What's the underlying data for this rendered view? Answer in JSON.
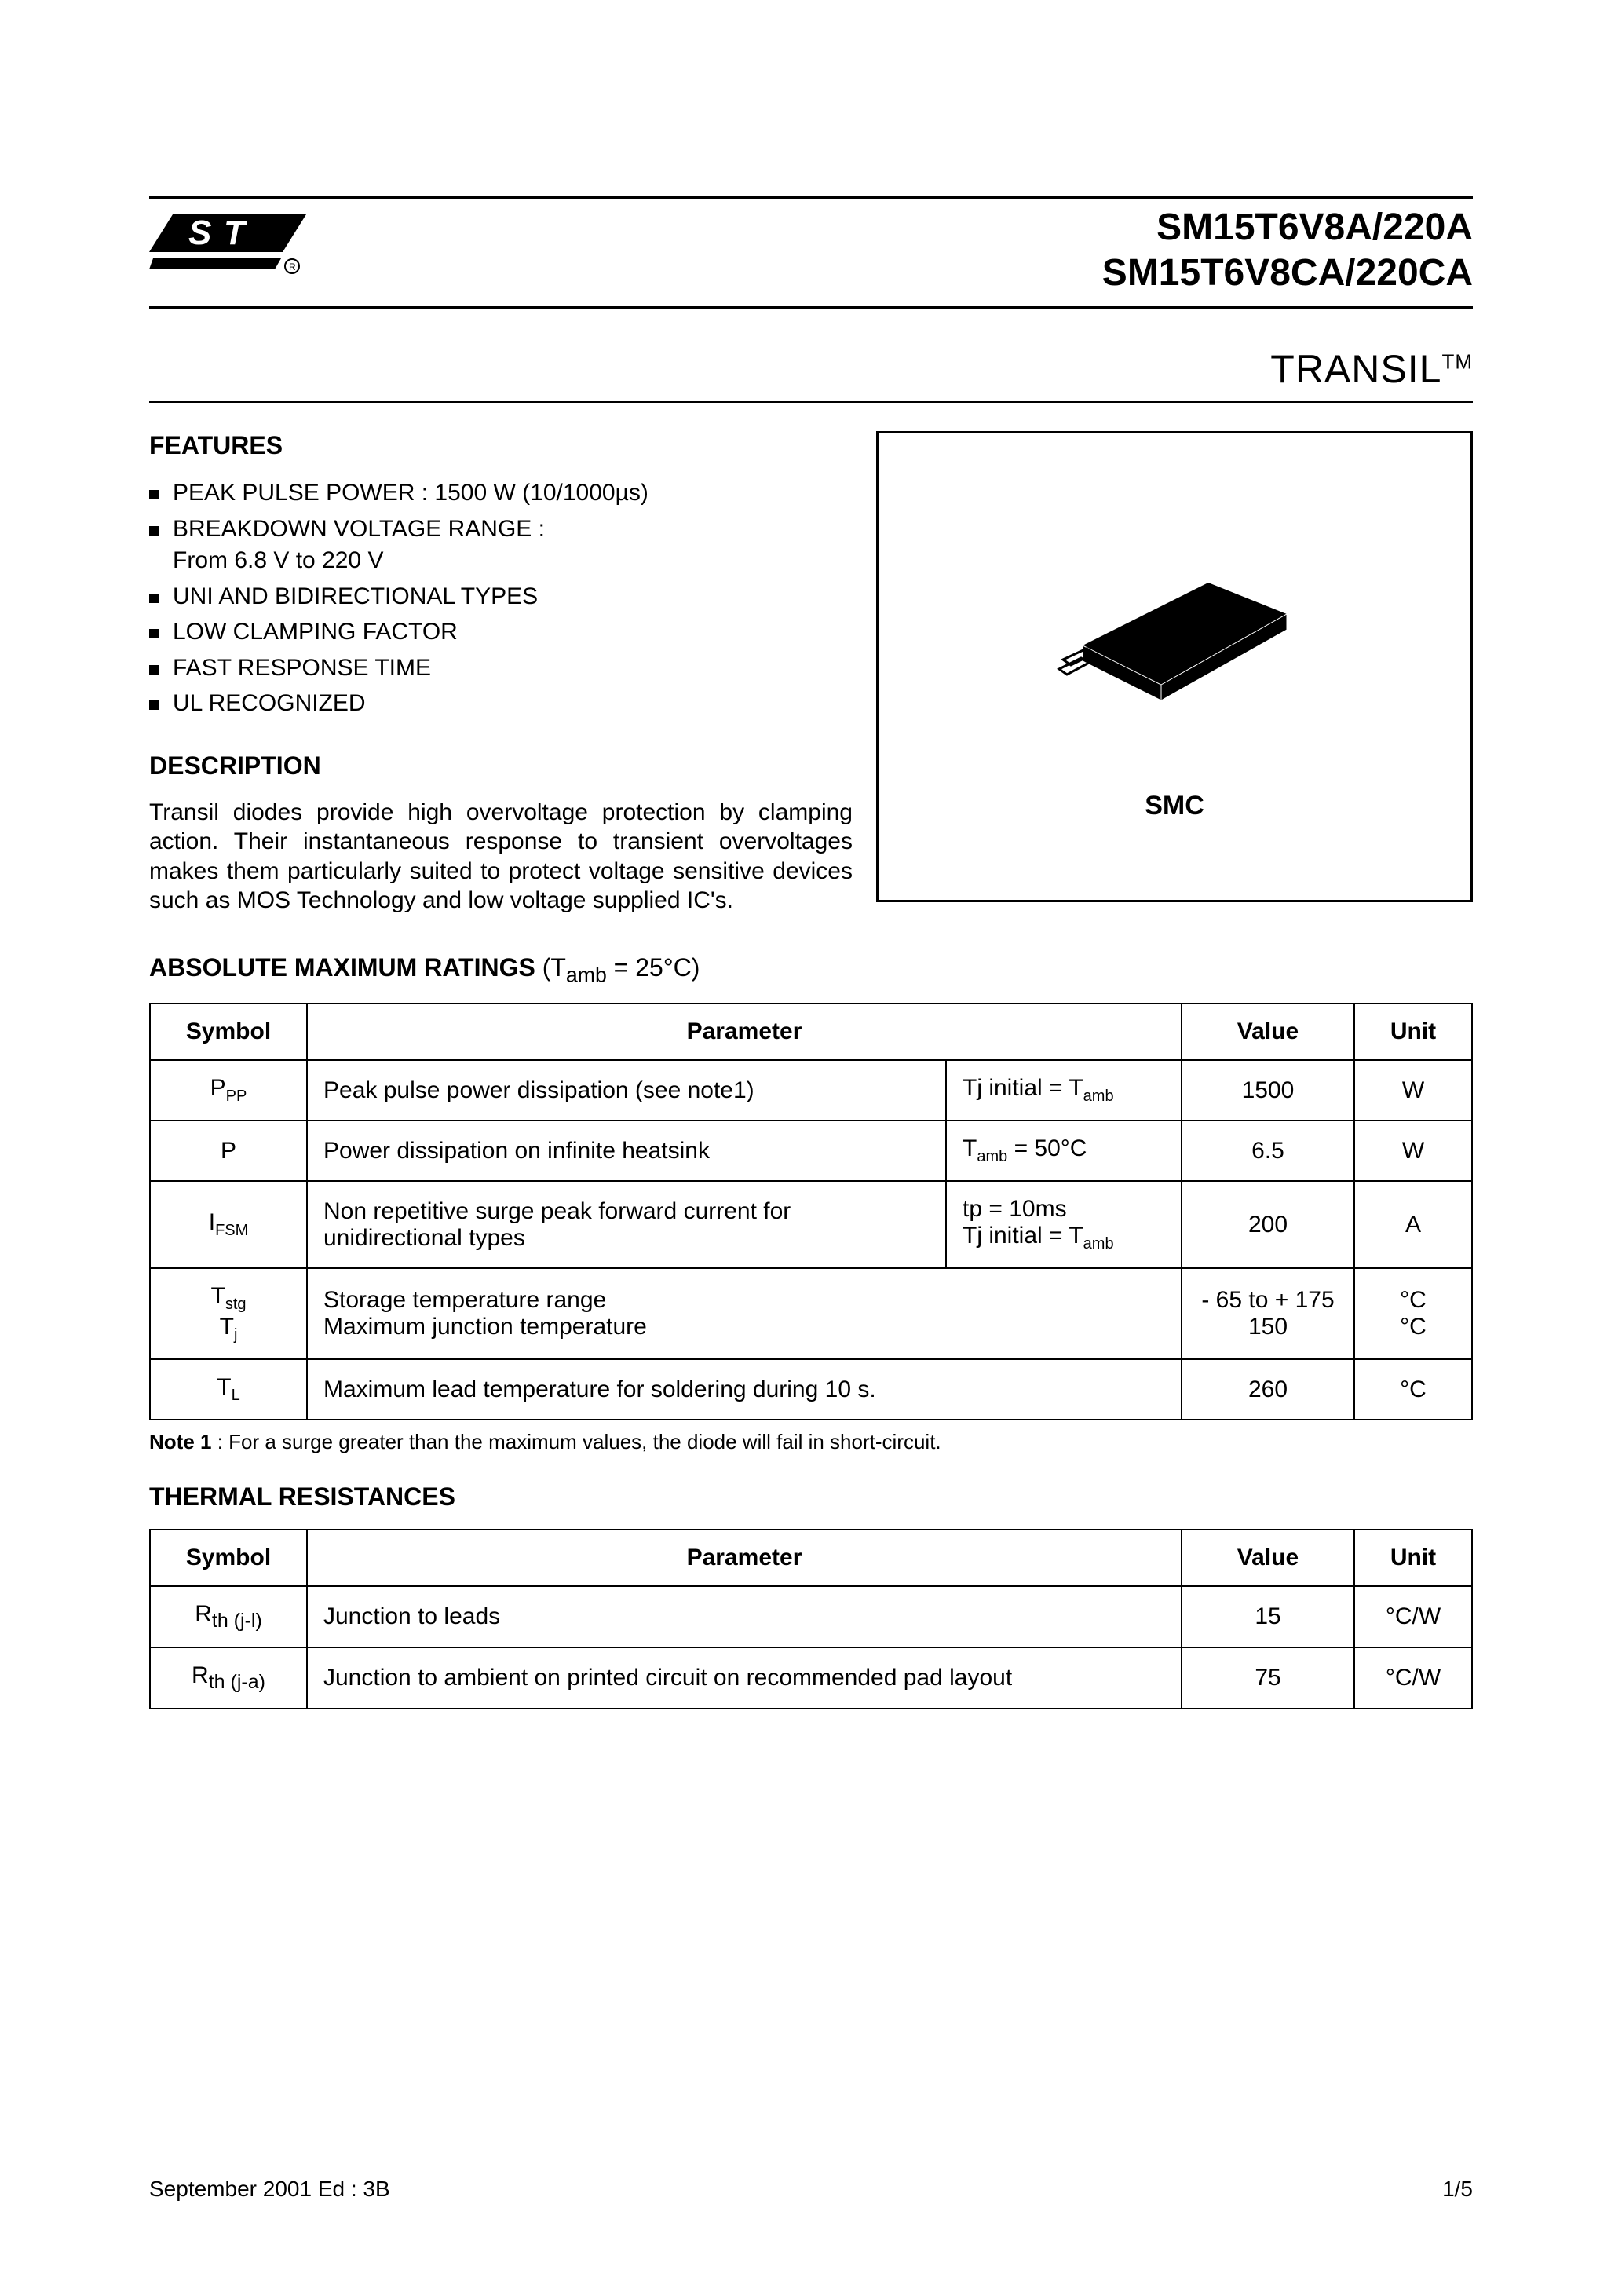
{
  "header": {
    "title_line1": "SM15T6V8A/220A",
    "title_line2": "SM15T6V8CA/220CA",
    "subtitle": "TRANSIL",
    "subtitle_tm": "TM"
  },
  "features": {
    "heading": "FEATURES",
    "items": [
      "PEAK PULSE POWER : 1500 W  (10/1000µs)",
      "BREAKDOWN VOLTAGE RANGE :\nFrom 6.8 V to 220 V",
      "UNI AND BIDIRECTIONAL TYPES",
      "LOW CLAMPING FACTOR",
      "FAST RESPONSE TIME",
      "UL RECOGNIZED"
    ]
  },
  "description": {
    "heading": "DESCRIPTION",
    "text": "Transil diodes provide high overvoltage protection by clamping action. Their instantaneous response to transient overvoltages makes them particularly suited to protect voltage sensitive devices such as MOS Technology and low voltage supplied IC's."
  },
  "package": {
    "label": "SMC"
  },
  "ratings": {
    "heading": "ABSOLUTE MAXIMUM RATINGS",
    "condition_html": "(T<sub>amb</sub> = 25°C)",
    "columns": [
      "Symbol",
      "Parameter",
      "Value",
      "Unit"
    ],
    "rows": [
      {
        "symbol_html": "P<sub>PP</sub>",
        "param": "Peak pulse power dissipation  (see note1)",
        "cond_html": "Tj initial = T<sub>amb</sub>",
        "value": "1500",
        "unit": "W"
      },
      {
        "symbol_html": "P",
        "param": "Power dissipation on infinite heatsink",
        "cond_html": "T<sub>amb</sub> = 50°C",
        "value": "6.5",
        "unit": "W"
      },
      {
        "symbol_html": "I<sub>FSM</sub>",
        "param": "Non repetitive surge peak forward current for unidirectional types",
        "cond_html": "tp = 10ms<br>Tj initial = T<sub>amb</sub>",
        "value": "200",
        "unit": "A"
      },
      {
        "symbol_html": "T<sub>stg</sub><br>T<sub>j</sub>",
        "param": "Storage temperature range\nMaximum junction temperature",
        "cond_html": "",
        "value": "- 65 to + 175\n150",
        "unit": "°C\n°C",
        "span_cond": true
      },
      {
        "symbol_html": "T<sub>L</sub>",
        "param": "Maximum lead temperature for soldering during 10 s.",
        "cond_html": "",
        "value": "260",
        "unit": "°C",
        "span_cond": true
      }
    ],
    "note_html": "<b>Note 1</b> : For a surge greater than the maximum values, the diode will fail in short-circuit."
  },
  "thermal": {
    "heading": "THERMAL RESISTANCES",
    "columns": [
      "Symbol",
      "Parameter",
      "Value",
      "Unit"
    ],
    "rows": [
      {
        "symbol_html": "R<sub>th (j-l)</sub>",
        "param": "Junction to leads",
        "value": "15",
        "unit": "°C/W"
      },
      {
        "symbol_html": "R<sub>th (j-a)</sub>",
        "param": "Junction to ambient on printed circuit on recommended pad layout",
        "value": "75",
        "unit": "°C/W"
      }
    ]
  },
  "footer": {
    "left": "September 2001  Ed : 3B",
    "right": "1/5"
  },
  "colors": {
    "text": "#000000",
    "bg": "#ffffff",
    "rule": "#000000"
  }
}
